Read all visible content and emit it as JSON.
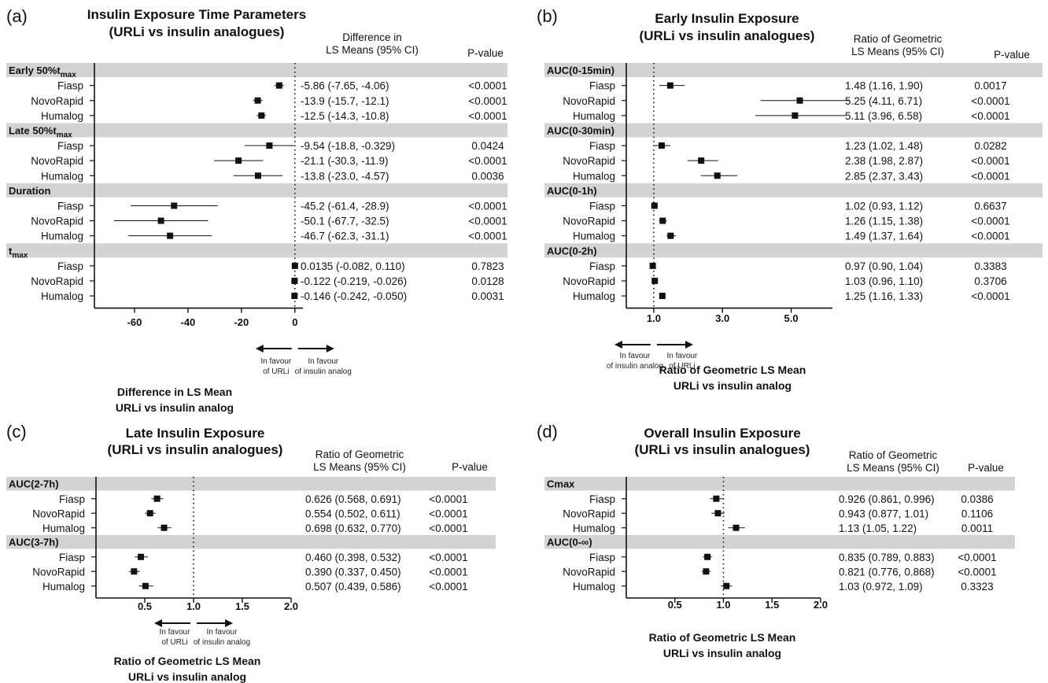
{
  "chart_data": [
    {
      "type": "forest",
      "panel": "(a)",
      "title": [
        "Insulin Exposure Time Parameters",
        "(URLi vs insulin analogues)"
      ],
      "est_header": [
        "Difference in",
        "LS Means (95% CI)"
      ],
      "p_header": "P-value",
      "xlim": [
        -75,
        3
      ],
      "ref_line": 0,
      "xticks": [
        -60,
        -40,
        -20,
        0
      ],
      "tick_labels": [
        "-60",
        "-40",
        "-20",
        "0"
      ],
      "favour_left": [
        "In favour",
        "of URLi"
      ],
      "favour_right": [
        "In favour",
        "of insulin analog"
      ],
      "xlabel": [
        "Difference in LS Mean",
        "URLi vs insulin analog"
      ],
      "groups": [
        {
          "label": "Early 50%t",
          "label_sub": "max",
          "rows": [
            {
              "name": "Fiasp",
              "est": -5.86,
              "lo": -7.65,
              "hi": -4.06,
              "text": "-5.86 (-7.65, -4.06)",
              "p": "<0.0001"
            },
            {
              "name": "NovoRapid",
              "est": -13.9,
              "lo": -15.7,
              "hi": -12.1,
              "text": "-13.9 (-15.7, -12.1)",
              "p": "<0.0001"
            },
            {
              "name": "Humalog",
              "est": -12.5,
              "lo": -14.3,
              "hi": -10.8,
              "text": "-12.5 (-14.3, -10.8)",
              "p": "<0.0001"
            }
          ]
        },
        {
          "label": "Late 50%t",
          "label_sub": "max",
          "rows": [
            {
              "name": "Fiasp",
              "est": -9.54,
              "lo": -18.8,
              "hi": -0.329,
              "text": "-9.54 (-18.8, -0.329)",
              "p": "0.0424"
            },
            {
              "name": "NovoRapid",
              "est": -21.1,
              "lo": -30.3,
              "hi": -11.9,
              "text": "-21.1 (-30.3, -11.9)",
              "p": "<0.0001"
            },
            {
              "name": "Humalog",
              "est": -13.8,
              "lo": -23.0,
              "hi": -4.57,
              "text": "-13.8 (-23.0, -4.57)",
              "p": "0.0036"
            }
          ]
        },
        {
          "label": "Duration",
          "label_sub": "",
          "rows": [
            {
              "name": "Fiasp",
              "est": -45.2,
              "lo": -61.4,
              "hi": -28.9,
              "text": "-45.2 (-61.4, -28.9)",
              "p": "<0.0001"
            },
            {
              "name": "NovoRapid",
              "est": -50.1,
              "lo": -67.7,
              "hi": -32.5,
              "text": "-50.1 (-67.7, -32.5)",
              "p": "<0.0001"
            },
            {
              "name": "Humalog",
              "est": -46.7,
              "lo": -62.3,
              "hi": -31.1,
              "text": "-46.7 (-62.3, -31.1)",
              "p": "<0.0001"
            }
          ]
        },
        {
          "label": "t",
          "label_sub": "max",
          "rows": [
            {
              "name": "Fiasp",
              "est": 0.0135,
              "lo": -0.082,
              "hi": 0.11,
              "text": "0.0135 (-0.082, 0.110)",
              "p": "0.7823"
            },
            {
              "name": "NovoRapid",
              "est": -0.122,
              "lo": -0.219,
              "hi": -0.026,
              "text": "-0.122 (-0.219, -0.026)",
              "p": "0.0128"
            },
            {
              "name": "Humalog",
              "est": -0.146,
              "lo": -0.242,
              "hi": -0.05,
              "text": "-0.146 (-0.242, -0.050)",
              "p": "0.0031"
            }
          ]
        }
      ]
    },
    {
      "type": "forest",
      "panel": "(b)",
      "title": [
        "Early Insulin Exposure",
        "(URLi vs insulin analogues)"
      ],
      "est_header": [
        "Ratio of Geometric",
        "LS Means (95% CI)"
      ],
      "p_header": "P-value",
      "xlim": [
        0.2,
        6.2
      ],
      "ref_line": 1.0,
      "xticks": [
        1.0,
        3.0,
        5.0
      ],
      "tick_labels": [
        "1.0",
        "3.0",
        "5.0"
      ],
      "favour_left": [
        "In favour",
        "of insulin analog"
      ],
      "favour_right": [
        "In favour",
        "of URLi"
      ],
      "xlabel": [
        "Ratio of Geometric LS Mean",
        "URLi vs insulin analog"
      ],
      "groups": [
        {
          "label": "AUC(0-15min)",
          "label_sub": "",
          "rows": [
            {
              "name": "Fiasp",
              "est": 1.48,
              "lo": 1.16,
              "hi": 1.9,
              "text": "1.48 (1.16, 1.90)",
              "p": "0.0017"
            },
            {
              "name": "NovoRapid",
              "est": 5.25,
              "lo": 4.11,
              "hi": 6.71,
              "text": "5.25 (4.11, 6.71)",
              "p": "<0.0001"
            },
            {
              "name": "Humalog",
              "est": 5.11,
              "lo": 3.96,
              "hi": 6.58,
              "text": "5.11 (3.96, 6.58)",
              "p": "<0.0001"
            }
          ]
        },
        {
          "label": "AUC(0-30min)",
          "label_sub": "",
          "rows": [
            {
              "name": "Fiasp",
              "est": 1.23,
              "lo": 1.02,
              "hi": 1.48,
              "text": "1.23 (1.02, 1.48)",
              "p": "0.0282"
            },
            {
              "name": "NovoRapid",
              "est": 2.38,
              "lo": 1.98,
              "hi": 2.87,
              "text": "2.38 (1.98, 2.87)",
              "p": "<0.0001"
            },
            {
              "name": "Humalog",
              "est": 2.85,
              "lo": 2.37,
              "hi": 3.43,
              "text": "2.85 (2.37, 3.43)",
              "p": "<0.0001"
            }
          ]
        },
        {
          "label": "AUC(0-1h)",
          "label_sub": "",
          "rows": [
            {
              "name": "Fiasp",
              "est": 1.02,
              "lo": 0.93,
              "hi": 1.12,
              "text": "1.02 (0.93, 1.12)",
              "p": "0.6637"
            },
            {
              "name": "NovoRapid",
              "est": 1.26,
              "lo": 1.15,
              "hi": 1.38,
              "text": "1.26 (1.15, 1.38)",
              "p": "<0.0001"
            },
            {
              "name": "Humalog",
              "est": 1.49,
              "lo": 1.37,
              "hi": 1.64,
              "text": "1.49 (1.37, 1.64)",
              "p": "<0.0001"
            }
          ]
        },
        {
          "label": "AUC(0-2h)",
          "label_sub": "",
          "rows": [
            {
              "name": "Fiasp",
              "est": 0.97,
              "lo": 0.9,
              "hi": 1.04,
              "text": "0.97 (0.90, 1.04)",
              "p": "0.3383"
            },
            {
              "name": "NovoRapid",
              "est": 1.03,
              "lo": 0.96,
              "hi": 1.1,
              "text": "1.03 (0.96, 1.10)",
              "p": "0.3706"
            },
            {
              "name": "Humalog",
              "est": 1.25,
              "lo": 1.16,
              "hi": 1.33,
              "text": "1.25 (1.16, 1.33)",
              "p": "<0.0001"
            }
          ]
        }
      ]
    },
    {
      "type": "forest",
      "panel": "(c)",
      "title": [
        "Late Insulin Exposure",
        "(URLi vs insulin analogues)"
      ],
      "est_header": [
        "Ratio of Geometric",
        "LS Means (95% CI)"
      ],
      "p_header": "P-value",
      "xlim": [
        0.0,
        2.0
      ],
      "ref_line": 1.0,
      "xticks": [
        0.5,
        1.0,
        1.5,
        2.0
      ],
      "tick_labels": [
        "0.5",
        "1.0",
        "1.5",
        "2.0"
      ],
      "favour_left": [
        "In favour",
        "of URLi"
      ],
      "favour_right": [
        "In favour",
        "of insulin analog"
      ],
      "xlabel": [
        "Ratio of Geometric LS Mean",
        "URLi vs insulin analog"
      ],
      "groups": [
        {
          "label": "AUC(2-7h)",
          "label_sub": "",
          "rows": [
            {
              "name": "Fiasp",
              "est": 0.626,
              "lo": 0.568,
              "hi": 0.691,
              "text": "0.626 (0.568, 0.691)",
              "p": "<0.0001"
            },
            {
              "name": "NovoRapid",
              "est": 0.554,
              "lo": 0.502,
              "hi": 0.611,
              "text": "0.554 (0.502, 0.611)",
              "p": "<0.0001"
            },
            {
              "name": "Humalog",
              "est": 0.698,
              "lo": 0.632,
              "hi": 0.77,
              "text": "0.698 (0.632, 0.770)",
              "p": "<0.0001"
            }
          ]
        },
        {
          "label": "AUC(3-7h)",
          "label_sub": "",
          "rows": [
            {
              "name": "Fiasp",
              "est": 0.46,
              "lo": 0.398,
              "hi": 0.532,
              "text": "0.460 (0.398, 0.532)",
              "p": "<0.0001"
            },
            {
              "name": "NovoRapid",
              "est": 0.39,
              "lo": 0.337,
              "hi": 0.45,
              "text": "0.390 (0.337, 0.450)",
              "p": "<0.0001"
            },
            {
              "name": "Humalog",
              "est": 0.507,
              "lo": 0.439,
              "hi": 0.586,
              "text": "0.507 (0.439, 0.586)",
              "p": "<0.0001"
            }
          ]
        }
      ]
    },
    {
      "type": "forest",
      "panel": "(d)",
      "title": [
        "Overall Insulin Exposure",
        "(URLi vs insulin analogues)"
      ],
      "est_header": [
        "Ratio of Geometric",
        "LS Means (95% CI)"
      ],
      "p_header": "P-value",
      "xlim": [
        0.0,
        2.0
      ],
      "ref_line": 1.0,
      "xticks": [
        0.5,
        1.0,
        1.5,
        2.0
      ],
      "tick_labels": [
        "0.5",
        "1.0",
        "1.5",
        "2.0"
      ],
      "favour_left": [],
      "favour_right": [],
      "xlabel": [
        "Ratio of Geometric LS Mean",
        "URLi vs insulin analog"
      ],
      "groups": [
        {
          "label": "Cmax",
          "label_sub": "",
          "rows": [
            {
              "name": "Fiasp",
              "est": 0.926,
              "lo": 0.861,
              "hi": 0.996,
              "text": "0.926 (0.861, 0.996)",
              "p": "0.0386"
            },
            {
              "name": "NovoRapid",
              "est": 0.943,
              "lo": 0.877,
              "hi": 1.01,
              "text": "0.943 (0.877, 1.01)",
              "p": "0.1106"
            },
            {
              "name": "Humalog",
              "est": 1.13,
              "lo": 1.05,
              "hi": 1.22,
              "text": "1.13 (1.05, 1.22)",
              "p": "0.0011"
            }
          ]
        },
        {
          "label": "AUC(0-∞)",
          "label_sub": "",
          "rows": [
            {
              "name": "Fiasp",
              "est": 0.835,
              "lo": 0.789,
              "hi": 0.883,
              "text": "0.835 (0.789, 0.883)",
              "p": "<0.0001"
            },
            {
              "name": "NovoRapid",
              "est": 0.821,
              "lo": 0.776,
              "hi": 0.868,
              "text": "0.821 (0.776, 0.868)",
              "p": "<0.0001"
            },
            {
              "name": "Humalog",
              "est": 1.03,
              "lo": 0.972,
              "hi": 1.09,
              "text": "1.03 (0.972, 1.09)",
              "p": "0.3323"
            }
          ]
        }
      ]
    }
  ]
}
